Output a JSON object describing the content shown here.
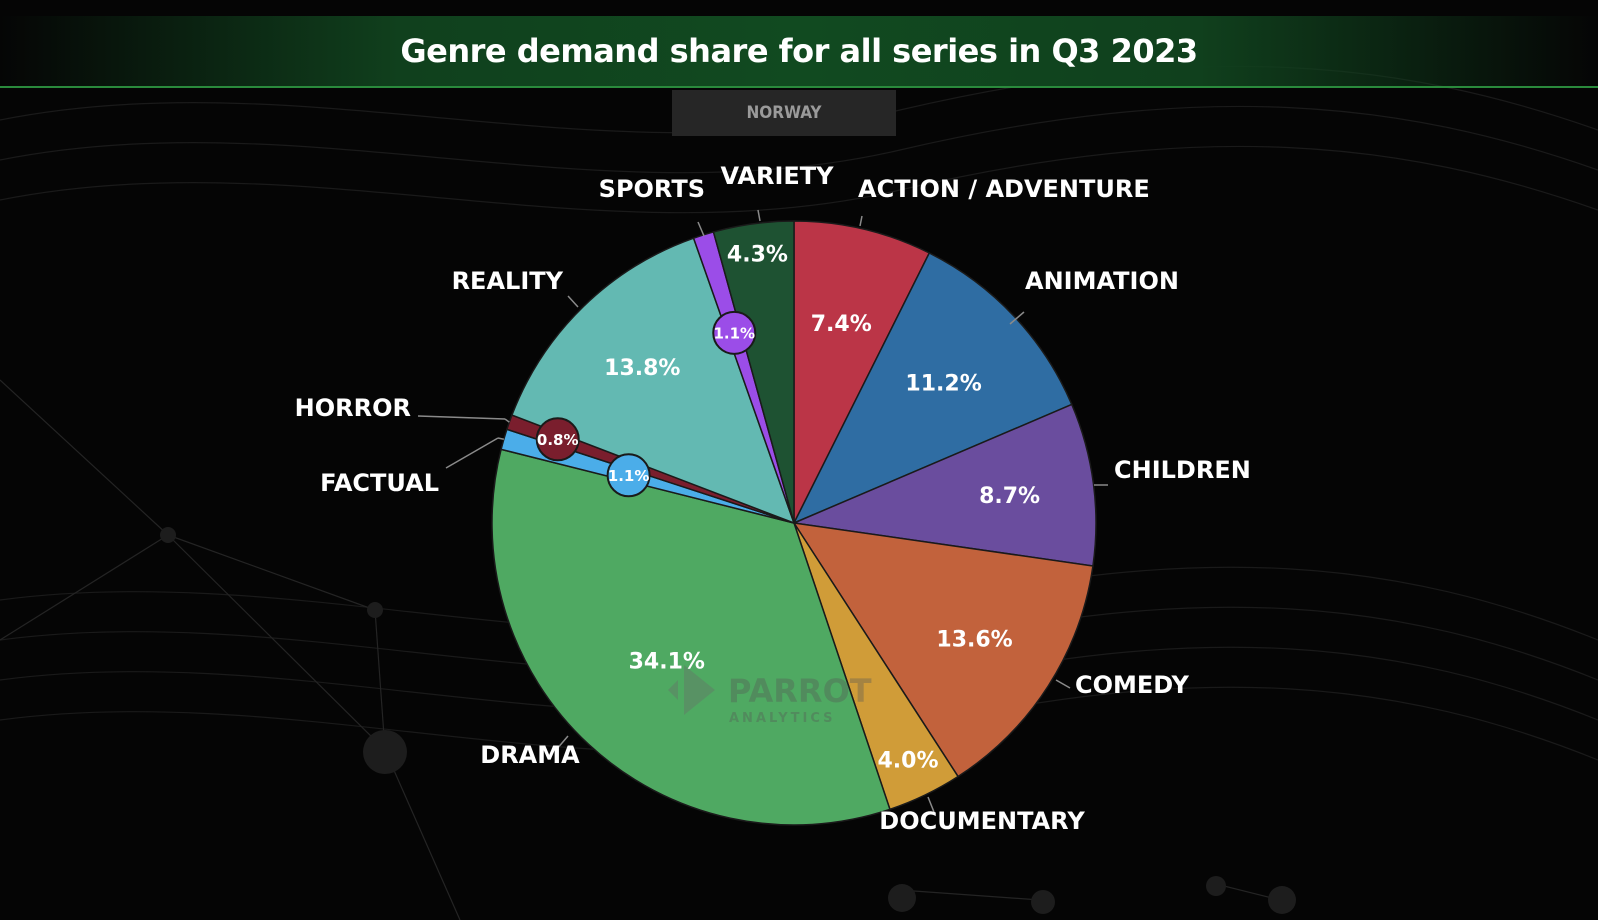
{
  "title": "Genre demand share for all series in Q3 2023",
  "region": "NORWAY",
  "watermark": {
    "brand": "PARROT",
    "sub": "ANALYTICS"
  },
  "chart_data": {
    "type": "pie",
    "title": "Genre demand share for all series in Q3 2023",
    "subtitle": "NORWAY",
    "unit": "%",
    "slices": [
      {
        "label": "ACTION / ADVENTURE",
        "value": 7.4,
        "display": "7.4%",
        "color": "#bb3547"
      },
      {
        "label": "ANIMATION",
        "value": 11.2,
        "display": "11.2%",
        "color": "#2f6da3"
      },
      {
        "label": "CHILDREN",
        "value": 8.7,
        "display": "8.7%",
        "color": "#6a4d9e"
      },
      {
        "label": "COMEDY",
        "value": 13.6,
        "display": "13.6%",
        "color": "#c2623c"
      },
      {
        "label": "DOCUMENTARY",
        "value": 4.0,
        "display": "4.0%",
        "color": "#d09c38"
      },
      {
        "label": "DRAMA",
        "value": 34.1,
        "display": "34.1%",
        "color": "#4fa962"
      },
      {
        "label": "FACTUAL",
        "value": 1.1,
        "display": "1.1%",
        "color": "#4bade9"
      },
      {
        "label": "HORROR",
        "value": 0.8,
        "display": "0.8%",
        "color": "#7a1e2d"
      },
      {
        "label": "REALITY",
        "value": 13.8,
        "display": "13.8%",
        "color": "#63b9b2"
      },
      {
        "label": "SPORTS",
        "value": 1.1,
        "display": "1.1%",
        "color": "#9b4de8"
      },
      {
        "label": "VARIETY",
        "value": 4.3,
        "display": "4.3%",
        "color": "#1e5232"
      }
    ],
    "start_angle": "12 o'clock",
    "direction": "clockwise",
    "legend": "none (labels outside slices)"
  }
}
